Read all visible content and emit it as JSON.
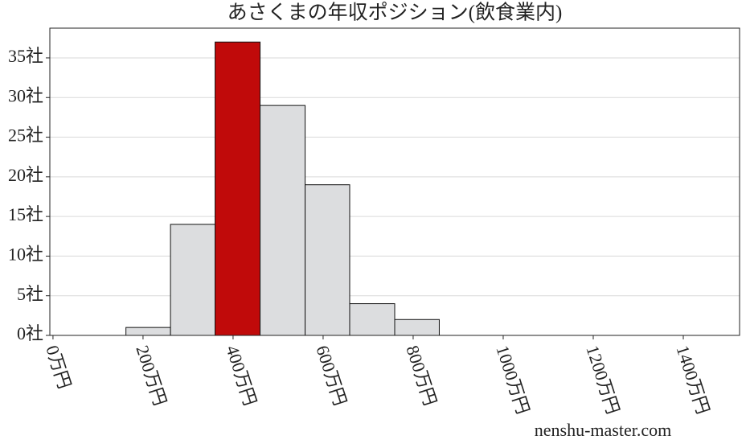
{
  "chart_data": {
    "type": "histogram",
    "title": "あさくまの年収ポジション(飲食業内)",
    "bins": [
      162,
      261,
      360,
      460,
      560,
      659,
      759,
      858
    ],
    "counts": [
      1,
      14,
      37,
      29,
      19,
      4,
      2
    ],
    "colors": [
      "#dcdddf",
      "#dcdddf",
      "#c00a0a",
      "#dcdddf",
      "#dcdddf",
      "#dcdddf",
      "#dcdddf"
    ],
    "xlim": [
      -7,
      1525
    ],
    "xticks": [
      {
        "value": 0,
        "label": "0万円"
      },
      {
        "value": 200,
        "label": "200万円"
      },
      {
        "value": 400,
        "label": "400万円"
      },
      {
        "value": 600,
        "label": "600万円"
      },
      {
        "value": 800,
        "label": "800万円"
      },
      {
        "value": 1000,
        "label": "1000万円"
      },
      {
        "value": 1200,
        "label": "1200万円"
      },
      {
        "value": 1400,
        "label": "1400万円"
      }
    ],
    "ylim": [
      0,
      38.75
    ],
    "yticks": [
      {
        "value": 0,
        "label": "0社"
      },
      {
        "value": 5,
        "label": "5社"
      },
      {
        "value": 10,
        "label": "10社"
      },
      {
        "value": 15,
        "label": "15社"
      },
      {
        "value": 20,
        "label": "20社"
      },
      {
        "value": 25,
        "label": "25社"
      },
      {
        "value": 30,
        "label": "30社"
      },
      {
        "value": 35,
        "label": "35社"
      }
    ],
    "grid": true,
    "watermark": "nenshu-master.com"
  }
}
